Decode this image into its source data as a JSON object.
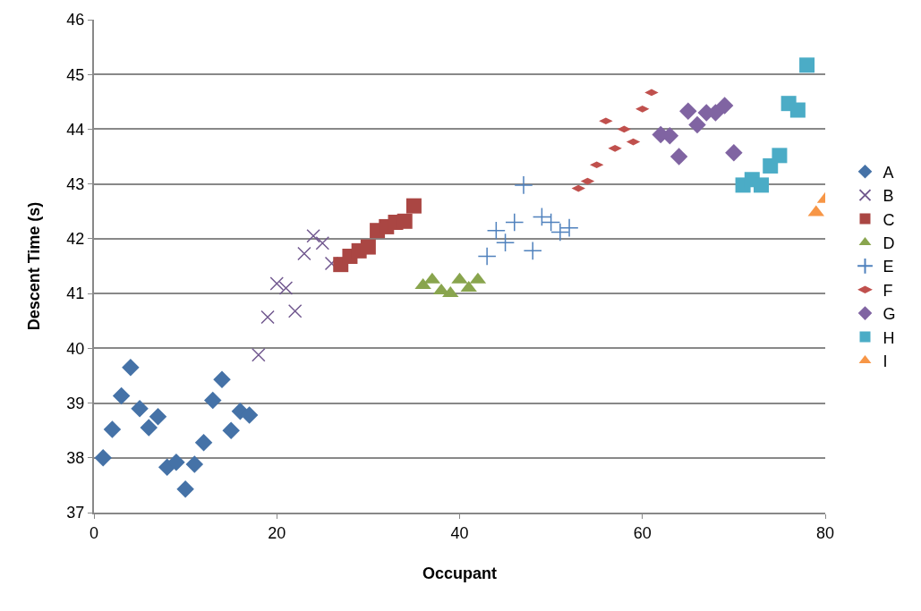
{
  "chart_data": {
    "type": "scatter",
    "xlabel": "Occupant",
    "ylabel": "Descent Time (s)",
    "xlim": [
      0,
      80
    ],
    "xticks": [
      0,
      20,
      40,
      60,
      80
    ],
    "ylim": [
      37,
      46
    ],
    "yticks": [
      37,
      38,
      39,
      40,
      41,
      42,
      43,
      44,
      45,
      46
    ],
    "grid": "y",
    "legend": "right",
    "series": [
      {
        "name": "A",
        "color": "#4572a7",
        "marker": "diamond",
        "x": [
          1,
          2,
          3,
          4,
          5,
          6,
          7,
          8,
          9,
          10,
          11,
          12,
          13,
          14,
          15,
          16,
          17
        ],
        "values": [
          38.0,
          38.52,
          39.13,
          39.65,
          38.9,
          38.55,
          38.75,
          37.83,
          37.92,
          37.43,
          37.88,
          38.28,
          39.05,
          39.43,
          38.5,
          38.85,
          38.78
        ]
      },
      {
        "name": "B",
        "color": "#71588f",
        "marker": "cross",
        "x": [
          18,
          19,
          20,
          21,
          22,
          23,
          24,
          25,
          26
        ],
        "values": [
          39.88,
          40.57,
          41.18,
          41.1,
          40.68,
          41.73,
          42.05,
          41.92,
          41.55
        ]
      },
      {
        "name": "C",
        "color": "#aa4643",
        "marker": "square",
        "x": [
          27,
          28,
          29,
          30,
          31,
          32,
          33,
          34,
          35
        ],
        "values": [
          41.53,
          41.68,
          41.78,
          41.85,
          42.15,
          42.22,
          42.3,
          42.32,
          42.6
        ]
      },
      {
        "name": "D",
        "color": "#89a54e",
        "marker": "triangle",
        "x": [
          36,
          37,
          38,
          39,
          40,
          41,
          42
        ],
        "values": [
          41.15,
          41.25,
          41.05,
          41.0,
          41.25,
          41.1,
          41.25
        ]
      },
      {
        "name": "E",
        "color": "#4f81bd",
        "marker": "plus",
        "x": [
          43,
          44,
          45,
          46,
          47,
          48,
          49,
          50,
          51,
          52
        ],
        "values": [
          41.68,
          42.15,
          41.93,
          42.3,
          42.98,
          41.78,
          42.4,
          42.3,
          42.12,
          42.2
        ]
      },
      {
        "name": "F",
        "color": "#c0504d",
        "x": [
          53,
          54,
          55,
          56,
          57,
          58,
          59,
          60,
          61
        ],
        "values": [
          42.92,
          43.05,
          43.35,
          44.15,
          43.65,
          44.0,
          43.77,
          44.37,
          44.67
        ]
      },
      {
        "name": "G",
        "color": "#8064a2",
        "marker": "diamond",
        "x": [
          62,
          63,
          64,
          65,
          66,
          67,
          68,
          69,
          70
        ],
        "values": [
          43.9,
          43.88,
          43.5,
          44.33,
          44.08,
          44.3,
          44.3,
          44.43,
          43.57
        ]
      },
      {
        "name": "H",
        "color": "#4bacc6",
        "marker": "square",
        "x": [
          71,
          72,
          73,
          74,
          75,
          76,
          77,
          78
        ],
        "values": [
          42.98,
          43.08,
          42.98,
          43.33,
          43.52,
          44.47,
          44.35,
          45.17
        ]
      },
      {
        "name": "I",
        "color": "#f79646",
        "marker": "triangle",
        "x": [
          79,
          80
        ],
        "values": [
          42.48,
          42.72
        ]
      }
    ]
  }
}
